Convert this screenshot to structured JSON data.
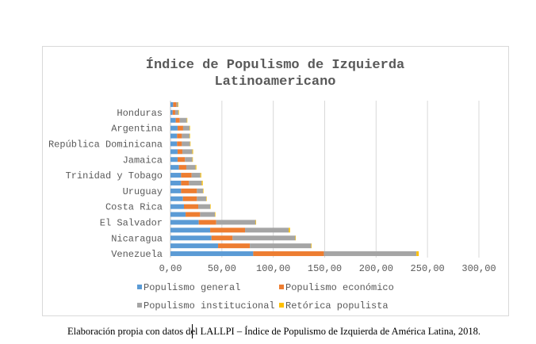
{
  "chart_data": {
    "type": "bar",
    "orientation": "horizontal",
    "stacked": true,
    "title": "Índice de Populismo de Izquierda Latinoamericano",
    "title_lines": [
      "Índice de Populismo de Izquierda",
      "Latinoamericano"
    ],
    "categories": [
      "",
      "Honduras",
      "",
      "Argentina",
      "",
      "República Dominicana",
      "",
      "Jamaica",
      "",
      "Trinidad y Tobago",
      "",
      "Uruguay",
      "",
      "Costa Rica",
      "",
      "El Salvador",
      "",
      "Nicaragua",
      "",
      "Venezuela"
    ],
    "series": [
      {
        "name": "Populismo general",
        "color": "#5B9BD5",
        "values": [
          2.6,
          2.1,
          5.1,
          6.9,
          6.4,
          6.4,
          6.9,
          6.9,
          8.2,
          10.3,
          10.3,
          10.3,
          12.1,
          13.1,
          14.7,
          27.5,
          38.6,
          39.9,
          46.3,
          80.5
        ]
      },
      {
        "name": "Populismo económico",
        "color": "#ED7D31",
        "values": [
          3.1,
          2.5,
          3.9,
          5.4,
          4.7,
          4.7,
          4.7,
          7.2,
          7.2,
          10.3,
          7.7,
          15.4,
          13.6,
          13.9,
          14.1,
          17.0,
          33.9,
          20.5,
          30.9,
          68.7
        ]
      },
      {
        "name": "Populismo institucional",
        "color": "#A5A5A5",
        "values": [
          1.5,
          3.1,
          6.9,
          6.2,
          7.4,
          7.9,
          9.7,
          7.2,
          9.0,
          8.5,
          12.4,
          5.9,
          9.0,
          11.6,
          14.4,
          38.3,
          42.5,
          61.0,
          59.6,
          90.0
        ]
      },
      {
        "name": "Retórica populista",
        "color": "#FFC000",
        "values": [
          0.5,
          0.5,
          0.5,
          0.5,
          0.5,
          0.5,
          0.7,
          0.5,
          0.8,
          0.8,
          1.0,
          0.5,
          0.5,
          0.5,
          0.5,
          0.5,
          1.3,
          0.5,
          0.5,
          2.3
        ]
      }
    ],
    "xlim": [
      0,
      300
    ],
    "xticks": [
      "0,00",
      "50,00",
      "100,00",
      "150,00",
      "200,00",
      "250,00",
      "300,00"
    ],
    "grid": true,
    "legend": "bottom"
  },
  "caption": "Elaboración propia con datos del LALLPI – Índice de Populismo de Izquierda de América Latina, 2018."
}
